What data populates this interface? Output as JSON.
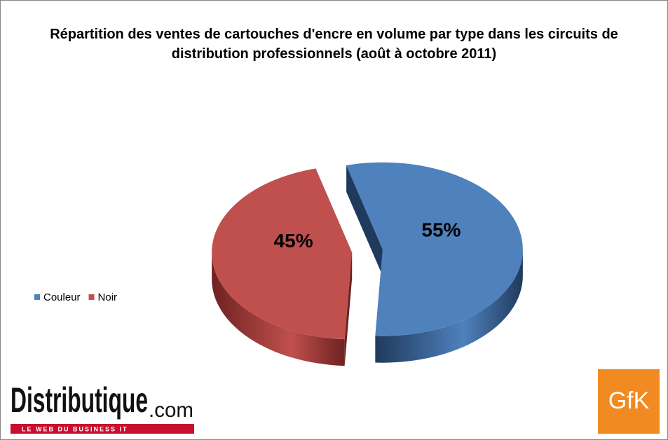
{
  "chart_data": {
    "type": "pie",
    "title": "Répartition des ventes de cartouches d'encre en volume par type dans les circuits de distribution professionnels (août à octobre 2011)",
    "categories": [
      "Couleur",
      "Noir"
    ],
    "values": [
      55,
      45
    ],
    "value_labels": [
      "55%",
      "45%"
    ],
    "colors": [
      "#4f81bd",
      "#c0504d"
    ],
    "side_colors": [
      "#1f3a5c",
      "#6e2221"
    ],
    "legend": "left"
  },
  "logos": {
    "distributique": "Distributique",
    "distributique_suffix": ".com",
    "distributique_tagline": "LE WEB DU BUSINESS IT",
    "gfk": "GfK"
  }
}
